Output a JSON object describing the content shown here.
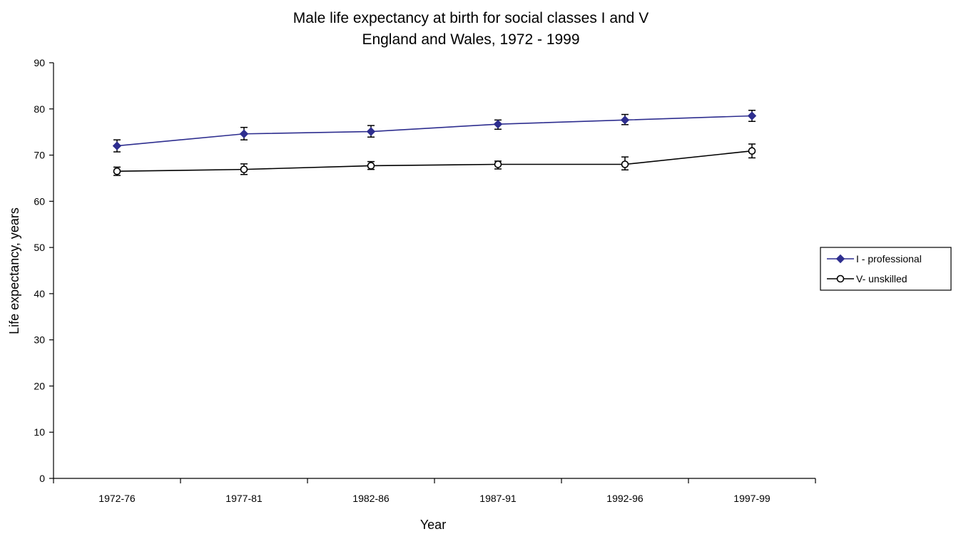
{
  "chart_data": {
    "type": "line",
    "title": "Male life expectancy at birth for social classes I and V",
    "subtitle": "England and Wales, 1972 - 1999",
    "xlabel": "Year",
    "ylabel": "Life expectancy, years",
    "ylim": [
      0,
      90
    ],
    "yticks": [
      "0",
      "10",
      "20",
      "30",
      "40",
      "50",
      "60",
      "70",
      "80",
      "90"
    ],
    "categories": [
      "1972-76",
      "1977-81",
      "1982-86",
      "1987-91",
      "1992-96",
      "1997-99"
    ],
    "grid": false,
    "legend_position": "right",
    "series": [
      {
        "name": "I - professional",
        "color": "#2E2E8F",
        "marker": "diamond",
        "values": [
          72.0,
          74.6,
          75.1,
          76.7,
          77.6,
          78.5
        ],
        "error_low": [
          70.7,
          73.3,
          73.9,
          75.6,
          76.6,
          77.3
        ],
        "error_high": [
          73.3,
          76.0,
          76.4,
          77.6,
          78.8,
          79.7
        ]
      },
      {
        "name": "V- unskilled",
        "color": "#000000",
        "marker": "circle-open",
        "values": [
          66.5,
          66.9,
          67.7,
          68.0,
          68.0,
          70.9
        ],
        "error_low": [
          65.6,
          65.8,
          66.9,
          67.0,
          66.8,
          69.4
        ],
        "error_high": [
          67.4,
          68.1,
          68.6,
          68.7,
          69.6,
          72.4
        ]
      }
    ]
  }
}
